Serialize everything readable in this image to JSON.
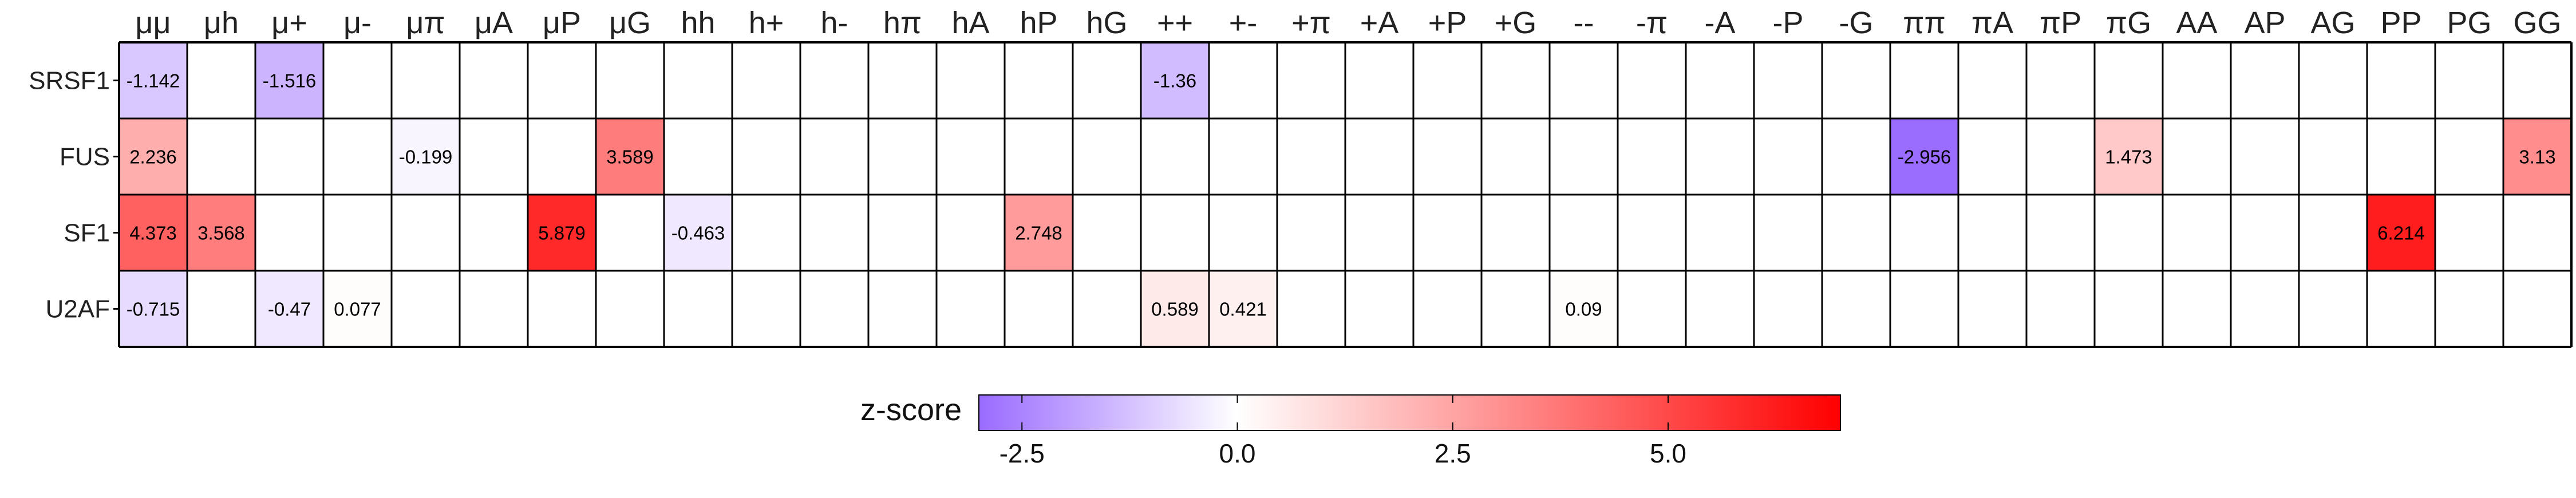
{
  "chart_data": {
    "type": "heatmap",
    "columns": [
      "μμ",
      "μh",
      "μ+",
      "μ-",
      "μπ",
      "μA",
      "μP",
      "μG",
      "hh",
      "h+",
      "h-",
      "hπ",
      "hA",
      "hP",
      "hG",
      "++",
      "+-",
      "+π",
      "+A",
      "+P",
      "+G",
      "--",
      "-π",
      "-A",
      "-P",
      "-G",
      "ππ",
      "πA",
      "πP",
      "πG",
      "AA",
      "AP",
      "AG",
      "PP",
      "PG",
      "GG"
    ],
    "rows": [
      "SRSF1",
      "FUS",
      "SF1",
      "U2AF"
    ],
    "values": {
      "SRSF1": {
        "μμ": -1.142,
        "μ+": -1.516,
        "++": -1.36
      },
      "FUS": {
        "μμ": 2.236,
        "μπ": -0.199,
        "μG": 3.589,
        "ππ": -2.956,
        "πG": 1.473,
        "GG": 3.13
      },
      "SF1": {
        "μμ": 4.373,
        "μh": 3.568,
        "μP": 5.879,
        "hh": -0.463,
        "hP": 2.748,
        "PP": 6.214
      },
      "U2AF": {
        "μμ": -0.715,
        "μ+": -0.47,
        "μ-": 0.077,
        "++": 0.589,
        "+-": 0.421,
        "--": 0.09
      }
    },
    "colorbar": {
      "label": "z-score",
      "vmin": -3,
      "vmax": 7,
      "ticks": [
        -2.5,
        0.0,
        2.5,
        5.0
      ],
      "tick_labels": [
        "-2.5",
        "0.0",
        "2.5",
        "5.0"
      ],
      "colors": {
        "low": "#9a6bff",
        "mid": "#ffffff",
        "high": "#ff0000"
      },
      "orientation": "horizontal",
      "placement": "bottom-center"
    }
  }
}
